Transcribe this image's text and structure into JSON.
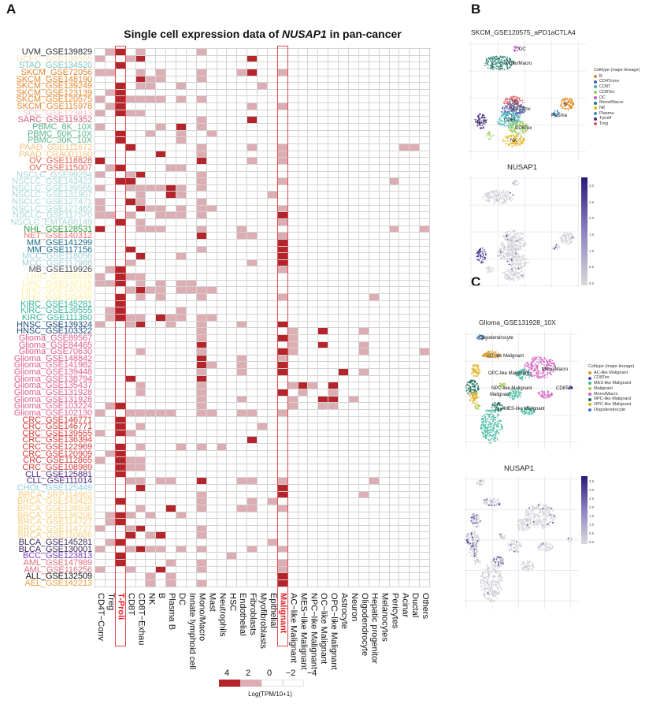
{
  "panel_labels": {
    "a": "A",
    "b": "B",
    "c": "C"
  },
  "title": {
    "prefix": "Single cell expression data of ",
    "gene": "NUSAP1",
    "suffix": " in pan-cancer"
  },
  "chart_data": {
    "type": "heatmap",
    "columns": [
      "CD4T−Conv",
      "Treg",
      "T-Proli",
      "CD8T",
      "CD8T−Exhau",
      "NK",
      "B",
      "Plasma B",
      "DC",
      "Innate lymphoid cell",
      "Mono/Macro",
      "Mast",
      "Neutrophils",
      "HSC",
      "Endothelial",
      "Fibroblasts",
      "Myofibroblasts",
      "Epithelial",
      "Malignant",
      "AC−like Malignant",
      "MES−like Malignant",
      "NPC−like Malignant",
      "OC−like Malignant",
      "OPC−like Malignant",
      "Astrocyte",
      "Neuron",
      "Oligodendrocyte",
      "Hepatic progenitor",
      "Melanocytes",
      "Pericytes",
      "Acinar",
      "Ductal",
      "Others"
    ],
    "highlighted_columns": [
      "T-Proli",
      "Malignant"
    ],
    "colors": {
      "high": "#b3242b",
      "mid": "#dcadb2",
      "low": "#ffffff",
      "highlight": "#e0222a"
    },
    "group_colors": {
      "UVM": "#333333",
      "UCEC": "#f3dfb8",
      "STAD": "#7cc6c6",
      "SKCM": "#e5882d",
      "SCC": "#f2bcc4",
      "SARC": "#d65e78",
      "PBMC": "#5bb58a",
      "PAAD": "#f3c27e",
      "OV": "#df5f4f",
      "NSCLC": "#a6d6d6",
      "NHL": "#279a38",
      "NET": "#ef7070",
      "MM": "#1b6b8a",
      "MCC": "#9fcfd7",
      "MB": "#555555",
      "LIHC": "#fbeea0",
      "KIRC": "#39b39a",
      "HNSC": "#1c4a7a",
      "Glioma": "#df5f8a",
      "CRC": "#d63a3a",
      "CLL": "#4b2a7b",
      "CHOL": "#88cfe0",
      "BRCA": "#f6cf80",
      "BLCA": "#3b2b5b",
      "BCC": "#7a3bc0",
      "AML": "#df6f80",
      "ALL": "#111111",
      "AEL": "#ef9f40"
    },
    "rows": [
      {
        "label": "UVM_GSE139829",
        "values": {
          "1": 2,
          "2": 4,
          "4": 2,
          "10": 2
        }
      },
      {
        "label": "UCEC_GSE139555",
        "values": {
          "0": 2,
          "3": 2,
          "4": 4,
          "15": 4
        }
      },
      {
        "label": "STAD_GSE134520",
        "values": {
          "2": 4
        }
      },
      {
        "label": "SKCM_GSE72056",
        "values": {
          "0": 2,
          "1": 2,
          "4": 2,
          "6": 2,
          "10": 2,
          "14": 2,
          "15": 4,
          "18": 2
        }
      },
      {
        "label": "SKCM_GSE148190",
        "values": {
          "4": 4,
          "5": 2,
          "6": 2,
          "10": 2
        }
      },
      {
        "label": "SKCM_GSE139249",
        "values": {
          "2": 4,
          "4": 2,
          "5": 2,
          "8": 2,
          "16": 2
        }
      },
      {
        "label": "SKCM_GSE123139",
        "values": {
          "1": 2,
          "2": 4
        }
      },
      {
        "label": "SKCM_GSE120575",
        "values": {
          "0": 2,
          "2": 4,
          "3": 2,
          "4": 2,
          "5": 2,
          "6": 2,
          "8": 2,
          "10": 2
        }
      },
      {
        "label": "SKCM_GSE115978",
        "values": {
          "1": 2,
          "2": 4,
          "15": 2,
          "18": 2
        }
      },
      {
        "label": "SCC_GSE123813",
        "values": {
          "0": 2,
          "2": 4,
          "3": 2,
          "4": 2
        }
      },
      {
        "label": "SARC_GSE119352",
        "values": {
          "10": 2,
          "15": 4
        }
      },
      {
        "label": "PBMC_8K_10X",
        "values": {
          "0": 2,
          "6": 2,
          "8": 4,
          "10": 2
        }
      },
      {
        "label": "PBMC_60K_10X",
        "values": {
          "2": 4,
          "5": 2,
          "8": 2,
          "11": 2
        }
      },
      {
        "label": "PBMC_30K_10X",
        "values": {
          "2": 4,
          "8": 2
        }
      },
      {
        "label": "PAAD_GSE111672",
        "values": {
          "3": 4,
          "10": 2,
          "15": 2,
          "18": 2,
          "30": 2,
          "31": 2
        }
      },
      {
        "label": "PAAD_CRA001160",
        "values": {
          "6": 4,
          "10": 2,
          "18": 2
        }
      },
      {
        "label": "OV_GSE118828",
        "values": {
          "0": 4,
          "10": 4,
          "15": 2,
          "18": 2
        }
      },
      {
        "label": "OV_GSE115007",
        "values": {
          "1": 2,
          "2": 4,
          "7": 2,
          "8": 2
        }
      },
      {
        "label": "NSCLC_GSE99254",
        "values": {
          "0": 2,
          "3": 2,
          "4": 4,
          "10": 2
        }
      },
      {
        "label": "NSCLC_GSE143423",
        "values": {
          "2": 4,
          "3": 4,
          "10": 2,
          "18": 2,
          "29": 2
        }
      },
      {
        "label": "NSCLC_GSE139555",
        "values": {
          "0": 2,
          "3": 2,
          "4": 2,
          "5": 2,
          "6": 2,
          "7": 4,
          "8": 2,
          "10": 2
        }
      },
      {
        "label": "NSCLC_GSE131907",
        "values": {
          "4": 2,
          "7": 4,
          "8": 2,
          "17": 2
        }
      },
      {
        "label": "NSCLC_GSE127471",
        "values": {
          "0": 2,
          "3": 4,
          "4": 2,
          "10": 2
        }
      },
      {
        "label": "NSCLC_GSE127465",
        "values": {
          "0": 2,
          "4": 4,
          "5": 2,
          "6": 2,
          "8": 2,
          "10": 2,
          "11": 2,
          "18": 2
        }
      },
      {
        "label": "NSCLC_GSE117570",
        "values": {
          "0": 2,
          "1": 2,
          "3": 2,
          "6": 2,
          "7": 2,
          "8": 2,
          "10": 2,
          "18": 4
        }
      },
      {
        "label": "NSCLC_EMTAB6149",
        "values": {
          "2": 4,
          "4": 2,
          "18": 2
        }
      },
      {
        "label": "NHL_GSE128531",
        "values": {
          "0": 4,
          "4": 2,
          "5": 2,
          "6": 2,
          "10": 2,
          "14": 2,
          "29": 2,
          "32": 2
        }
      },
      {
        "label": "NET_GSE140312",
        "values": {
          "10": 4,
          "14": 2,
          "15": 2,
          "18": 2
        }
      },
      {
        "label": "MM_GSE141299",
        "values": {
          "18": 4
        }
      },
      {
        "label": "MM_GSE117156",
        "values": {
          "3": 4,
          "10": 2,
          "18": 4
        }
      },
      {
        "label": "MCC_GSE118056",
        "values": {
          "4": 4,
          "8": 2,
          "18": 4
        }
      },
      {
        "label": "MCC_GSE117988",
        "values": {
          "3": 2,
          "15": 2,
          "18": 4
        }
      },
      {
        "label": "MB_GSE119926",
        "values": {
          "1": 2,
          "2": 4,
          "18": 2
        }
      },
      {
        "label": "LIHC_GSE98638",
        "values": {
          "0": 2,
          "2": 4,
          "3": 2,
          "4": 2
        }
      },
      {
        "label": "LIHC_GSE146115",
        "values": {
          "0": 2,
          "1": 2,
          "2": 4,
          "4": 2,
          "6": 2,
          "8": 2,
          "9": 2
        }
      },
      {
        "label": "LIHC_GSE140228",
        "values": {
          "3": 2,
          "4": 4,
          "5": 2,
          "6": 2,
          "8": 2,
          "9": 2,
          "10": 2,
          "11": 2
        }
      },
      {
        "label": "LIHC_GSE125449",
        "values": {
          "2": 4,
          "4": 2,
          "6": 2,
          "10": 2,
          "18": 2,
          "27": 2
        }
      },
      {
        "label": "KIRC_GSE145281",
        "values": {
          "2": 4
        }
      },
      {
        "label": "KIRC_GSE139555",
        "values": {
          "1": 2,
          "2": 4,
          "8": 2
        }
      },
      {
        "label": "KIRC_GSE111360",
        "values": {
          "1": 2,
          "2": 4,
          "3": 2,
          "4": 2,
          "6": 4,
          "7": 2,
          "8": 2,
          "10": 2,
          "11": 2
        }
      },
      {
        "label": "HNSC_GSE139324",
        "values": {
          "0": 2,
          "3": 2,
          "4": 4,
          "7": 2,
          "10": 2,
          "14": 2,
          "18": 4
        }
      },
      {
        "label": "HNSC_GSE103322",
        "values": {
          "10": 2,
          "19": 2,
          "22": 4,
          "26": 2
        }
      },
      {
        "label": "Glioma_GSE89567",
        "values": {
          "10": 2,
          "18": 4,
          "19": 2
        }
      },
      {
        "label": "Glioma_GSE84465",
        "values": {
          "10": 4,
          "19": 2,
          "22": 4,
          "26": 2
        }
      },
      {
        "label": "Glioma_GSE70630",
        "values": {
          "4": 2,
          "10": 2,
          "18": 4,
          "19": 2,
          "26": 2,
          "32": 2
        }
      },
      {
        "label": "Glioma_GSE148842",
        "values": {
          "10": 4,
          "14": 2,
          "18": 2
        }
      },
      {
        "label": "Glioma_GSE141982",
        "values": {
          "10": 4,
          "11": 2,
          "14": 2,
          "18": 4
        }
      },
      {
        "label": "Glioma_GSE139448",
        "values": {
          "10": 2,
          "14": 2,
          "18": 4,
          "24": 4,
          "26": 2
        }
      },
      {
        "label": "Glioma_GSE138794",
        "values": {
          "3": 4,
          "10": 4
        }
      },
      {
        "label": "Glioma_GSE135437",
        "values": {
          "4": 2,
          "10": 2,
          "19": 2,
          "20": 4,
          "21": 2,
          "23": 4
        }
      },
      {
        "label": "Glioma_GSE131928",
        "values": {
          "4": 2,
          "10": 2,
          "18": 4,
          "20": 2,
          "23": 2
        }
      },
      {
        "label": "Glioma_GSE131928",
        "values": {
          "10": 2,
          "14": 2,
          "19": 2,
          "22": 4,
          "23": 4,
          "25": 2
        }
      },
      {
        "label": "Glioma_GSE103224",
        "values": {
          "1": 2,
          "2": 4,
          "10": 2,
          "19": 2,
          "22": 2,
          "23": 2
        }
      },
      {
        "label": "Glioma_GSE102130",
        "values": {
          "0": 2,
          "3": 2,
          "4": 2,
          "5": 2,
          "6": 2,
          "7": 2,
          "10": 2,
          "11": 2,
          "14": 2,
          "15": 2,
          "18": 2
        }
      },
      {
        "label": "CRC_GSE146771",
        "values": {
          "2": 4
        }
      },
      {
        "label": "CRC_GSE146771",
        "values": {
          "2": 4,
          "4": 2,
          "16": 2
        }
      },
      {
        "label": "CRC_GSE139555",
        "values": {
          "0": 2,
          "2": 4,
          "3": 2
        }
      },
      {
        "label": "CRC_GSE136394",
        "values": {
          "15": 4
        }
      },
      {
        "label": "CRC_GSE122969",
        "values": {
          "2": 4,
          "4": 2,
          "8": 2,
          "10": 2,
          "12": 2
        }
      },
      {
        "label": "CRC_GSE120909",
        "values": {
          "1": 2,
          "2": 4
        }
      },
      {
        "label": "CRC_GSE112865",
        "values": {
          "0": 2,
          "2": 4,
          "3": 2,
          "4": 2
        }
      },
      {
        "label": "CRC_GSE108989",
        "values": {
          "2": 4,
          "3": 2,
          "4": 2
        }
      },
      {
        "label": "CLL_GSE125881",
        "values": {
          "2": 4
        }
      },
      {
        "label": "CLL_GSE111014",
        "values": {
          "3": 2,
          "4": 2,
          "6": 2,
          "7": 2,
          "10": 4,
          "14": 2,
          "15": 2,
          "18": 2,
          "27": 2
        }
      },
      {
        "label": "CHOL_GSE125449",
        "values": {
          "4": 4,
          "18": 4
        }
      },
      {
        "label": "BRCA_SRP114962",
        "values": {
          "10": 2,
          "18": 4,
          "26": 2
        }
      },
      {
        "label": "BRCA_GSE143423",
        "values": {
          "2": 4,
          "10": 2,
          "15": 2,
          "17": 2
        }
      },
      {
        "label": "BRCA_GSE138536",
        "values": {
          "4": 2,
          "7": 4,
          "10": 2,
          "14": 2,
          "15": 2,
          "18": 2
        }
      },
      {
        "label": "BRCA_GSE136206",
        "values": {
          "1": 2,
          "2": 4,
          "3": 2,
          "5": 2,
          "8": 2
        }
      },
      {
        "label": "BRCA_GSE114727",
        "values": {
          "1": 2,
          "2": 4
        }
      },
      {
        "label": "BRCA_GSE114727",
        "values": {
          "0": 2,
          "3": 2,
          "4": 4,
          "10": 2
        }
      },
      {
        "label": "BRCA_GSE110686",
        "values": {
          "3": 4,
          "5": 2,
          "6": 4,
          "10": 2
        }
      },
      {
        "label": "BLCA_GSE145281",
        "values": {
          "1": 2,
          "2": 4,
          "17": 2
        }
      },
      {
        "label": "BLCA_GSE130001",
        "values": {
          "0": 2,
          "3": 2,
          "4": 4,
          "5": 2,
          "6": 2,
          "8": 2,
          "10": 2,
          "15": 2,
          "18": 2
        }
      },
      {
        "label": "BCC_GSE123813",
        "values": {
          "2": 4,
          "13": 2
        }
      },
      {
        "label": "AML_GSE147989",
        "values": {
          "2": 4,
          "7": 2,
          "10": 2,
          "18": 2
        }
      },
      {
        "label": "AML_GSE116256",
        "values": {
          "0": 2,
          "3": 2,
          "6": 4,
          "10": 2,
          "18": 2
        }
      },
      {
        "label": "ALL_GSE132509",
        "values": {
          "5": 2,
          "7": 2,
          "18": 4
        }
      },
      {
        "label": "AEL_GSE142213",
        "values": {
          "5": 2,
          "7": 2,
          "10": 2,
          "18": 4
        }
      }
    ],
    "legend": {
      "ticks": [
        "4",
        "2",
        "0",
        "−2",
        "−4"
      ],
      "label": "Log(TPM/10+1)"
    }
  },
  "panel_b": {
    "title": "SKCM_GSE120575_aPD1aCTLA4",
    "legend_title": "Celltype (major-lineage)",
    "legend": [
      {
        "name": "B",
        "color": "#e38b1c"
      },
      {
        "name": "CD4Tconv",
        "color": "#4b5ea8"
      },
      {
        "name": "CD8T",
        "color": "#3eb6c0"
      },
      {
        "name": "CD8Tex",
        "color": "#9ccc5a"
      },
      {
        "name": "DC",
        "color": "#b45cc2"
      },
      {
        "name": "Mono/Macro",
        "color": "#1c7a6a"
      },
      {
        "name": "NK",
        "color": "#e9b422"
      },
      {
        "name": "Plasma",
        "color": "#3a8acb"
      },
      {
        "name": "Tprolif",
        "color": "#4b2a8b"
      },
      {
        "name": "Treg",
        "color": "#e35a6a"
      }
    ],
    "cluster_labels": [
      "DC",
      "Mono/Macro",
      "Treg",
      "CD4Tconv",
      "CD8T",
      "CD8Tex",
      "NK",
      "Tprolif",
      "B",
      "Plasma"
    ],
    "expr_title": "NUSAP1",
    "colorbar_ticks": [
      "3.0",
      "2.5",
      "2.0",
      "1.5",
      "1.0",
      "0.5",
      "0.0"
    ]
  },
  "panel_c": {
    "title": "Glioma_GSE131928_10X",
    "legend_title": "Celltype (major-lineage)",
    "legend": [
      {
        "name": "AC-like Malignant",
        "color": "#d99a1e"
      },
      {
        "name": "CD8Tex",
        "color": "#4b4ea8"
      },
      {
        "name": "MES-like Malignant",
        "color": "#3fb8a0"
      },
      {
        "name": "Malignant",
        "color": "#a8cc50"
      },
      {
        "name": "Mono/Macro",
        "color": "#d45ec0"
      },
      {
        "name": "NPC-like Malignant",
        "color": "#1c6e5a"
      },
      {
        "name": "OPC-like Malignant",
        "color": "#e3b226"
      },
      {
        "name": "Oligodendrocyte",
        "color": "#3a7ac8"
      }
    ],
    "cluster_labels": [
      "Oligodendrocyte",
      "AC-like Malignant",
      "OPC-like Malignant",
      "Mono/Macro",
      "CD8Tex",
      "NPC-like Malignant",
      "Malignant",
      "MES-like Malignant"
    ],
    "expr_title": "NUSAP1",
    "colorbar_ticks": [
      "3.5",
      "3.0",
      "2.5",
      "2.0",
      "1.5",
      "1.0",
      "0.5",
      "0.0"
    ]
  }
}
